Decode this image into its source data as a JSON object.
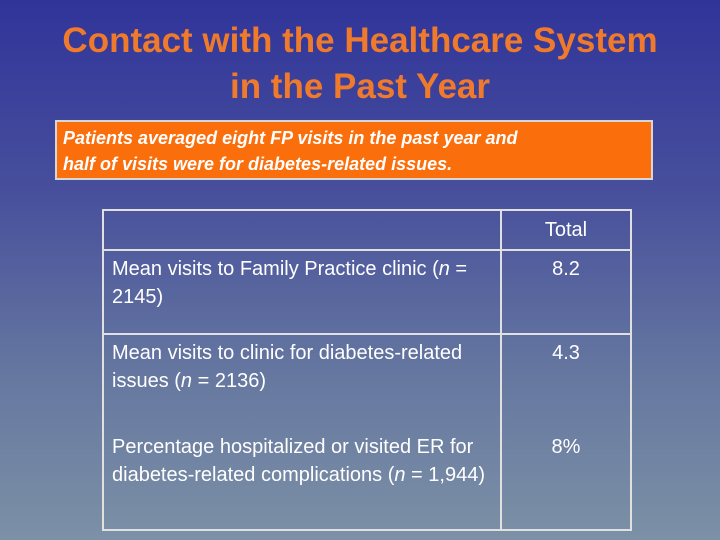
{
  "slide": {
    "title_line1": "Contact with the Healthcare System",
    "title_line2": "in the Past Year",
    "callout_line1": "Patients averaged eight FP visits in the past year and",
    "callout_line2": "half of visits were for diabetes-related issues."
  },
  "table": {
    "header": "Total",
    "rows": [
      {
        "label_pre": "Mean visits to Family Practice clinic (",
        "n": "n",
        "label_post": " = 2145)",
        "value": "8.2"
      },
      {
        "label_pre": "Mean visits to clinic for diabetes-related issues (",
        "n": "n",
        "label_post": " = 2136)",
        "value": "4.3"
      },
      {
        "label_pre": "Percentage hospitalized or visited ER for diabetes-related complications (",
        "n": "n",
        "label_post": " = 1,944)",
        "value": "8%"
      }
    ]
  },
  "colors": {
    "title": "#f07a2c",
    "callout_bg": "#fa6e0c",
    "background_top": "#30349a",
    "background_bottom": "#7c90a6"
  }
}
